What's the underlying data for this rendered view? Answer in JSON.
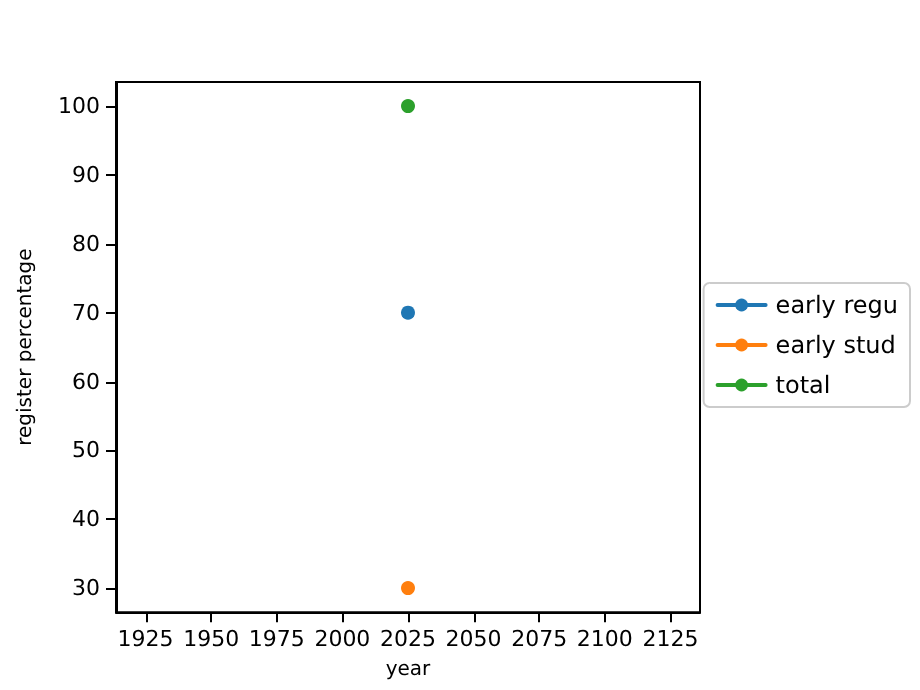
{
  "chart_data": {
    "type": "line",
    "xlabel": "year",
    "ylabel": "register percentage",
    "xlim": [
      1913.75,
      2136.25
    ],
    "xticks": [
      1925,
      1950,
      1975,
      2000,
      2025,
      2050,
      2075,
      2100,
      2125
    ],
    "ylim": [
      26.5,
      103.5
    ],
    "yticks": [
      30,
      40,
      50,
      60,
      70,
      80,
      90,
      100
    ],
    "x": [
      2025
    ],
    "series": [
      {
        "name": "early regu",
        "color": "#1f77b4",
        "values": [
          70
        ]
      },
      {
        "name": "early stud",
        "color": "#ff7f0e",
        "values": [
          30
        ]
      },
      {
        "name": "total",
        "color": "#2ca02c",
        "values": [
          100
        ]
      }
    ],
    "marker": "circle",
    "legend": "right",
    "grid": false
  }
}
